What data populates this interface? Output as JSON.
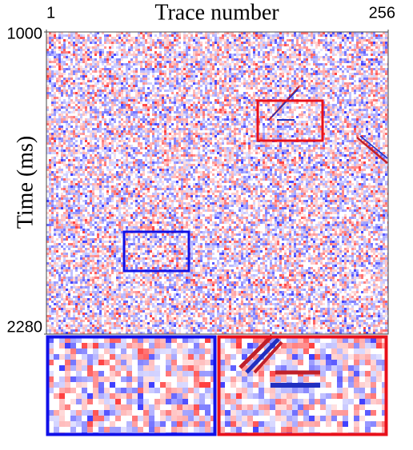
{
  "chart_data": {
    "type": "image",
    "xlabel": "Trace number",
    "ylabel": "Time (ms)",
    "xlim": [
      1,
      256
    ],
    "xticks": [
      1,
      256
    ],
    "ylim": [
      1000,
      2280
    ],
    "yticks": [
      1000,
      2280
    ]
  }
}
